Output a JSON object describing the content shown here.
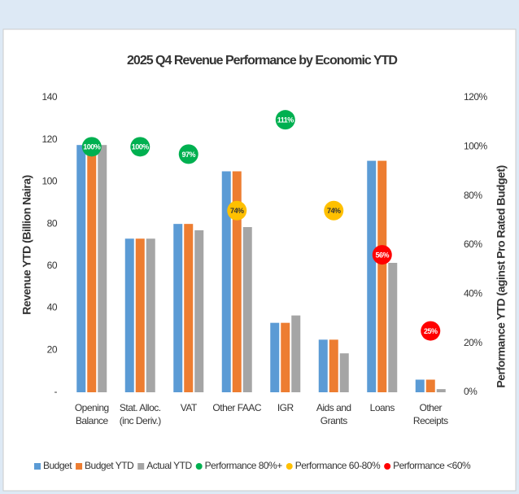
{
  "chart_data": {
    "type": "bar",
    "title": "2025 Q4 Revenue Performance by Economic YTD",
    "ylabel": "Revenue YTD (Billion Naira)",
    "y2label": "Performance YTD (aginst Pro Rated Budget)",
    "categories": [
      "Opening\nBalance",
      "Stat. Alloc.\n(inc Deriv.)",
      "VAT",
      "Other FAAC",
      "IGR",
      "Aids and\nGrants",
      "Loans",
      "Other\nReceipts"
    ],
    "series": [
      {
        "name": "Budget",
        "color": "#5b9bd5",
        "values": [
          117.5,
          73,
          80,
          105,
          33,
          25,
          110,
          6
        ]
      },
      {
        "name": "Budget YTD",
        "color": "#ed7d31",
        "values": [
          117.5,
          73,
          80,
          105,
          33,
          25,
          110,
          6
        ]
      },
      {
        "name": "Actual YTD",
        "color": "#a5a5a5",
        "values": [
          117.5,
          73,
          77,
          78.5,
          36.5,
          18.5,
          61.5,
          1.5
        ]
      },
      {
        "name": "Performance 80%+",
        "color": "#00b050",
        "axis": "y2",
        "values": [
          100,
          100,
          97,
          null,
          111,
          null,
          null,
          null
        ],
        "value_labels": [
          "100%",
          "100%",
          "97%",
          null,
          "111%",
          null,
          null,
          null
        ]
      },
      {
        "name": "Performance 60-80%",
        "color": "#ffc000",
        "axis": "y2",
        "values": [
          null,
          null,
          null,
          74,
          null,
          74,
          null,
          null
        ],
        "value_labels": [
          null,
          null,
          null,
          "74%",
          null,
          "74%",
          null,
          null
        ]
      },
      {
        "name": "Performance <60%",
        "color": "#ff0000",
        "axis": "y2",
        "values": [
          null,
          null,
          null,
          null,
          null,
          null,
          56,
          25
        ],
        "value_labels": [
          null,
          null,
          null,
          null,
          null,
          null,
          "56%",
          "25%"
        ]
      }
    ],
    "ylim": [
      0,
      140
    ],
    "yticks": [
      {
        "value": 0,
        "label": "-"
      },
      20,
      40,
      60,
      80,
      100,
      120,
      140
    ],
    "y2lim": [
      0,
      120
    ],
    "y2ticks": [
      {
        "value": 0,
        "label": "0%"
      },
      {
        "value": 20,
        "label": "20%"
      },
      {
        "value": 40,
        "label": "40%"
      },
      {
        "value": 60,
        "label": "60%"
      },
      {
        "value": 80,
        "label": "80%"
      },
      {
        "value": 100,
        "label": "100%"
      },
      {
        "value": 120,
        "label": "120%"
      }
    ],
    "legend": "bottom"
  }
}
